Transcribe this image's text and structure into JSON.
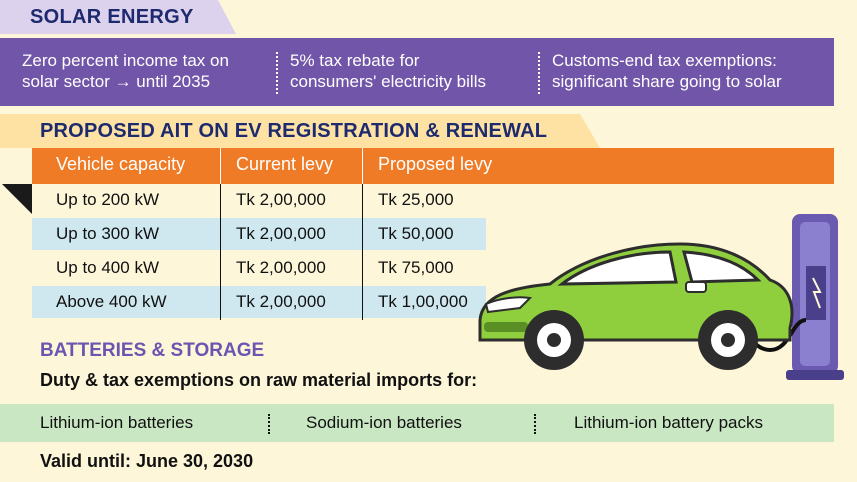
{
  "solar": {
    "title": "SOLAR ENERGY",
    "points": [
      {
        "line1": "Zero percent income tax on",
        "line2": "solar sector → until 2035"
      },
      {
        "line1": "5% tax rebate for",
        "line2": "consumers' electricity bills"
      },
      {
        "line1": "Customs-end tax exemptions:",
        "line2": "significant share going to solar"
      }
    ]
  },
  "ait": {
    "title": "PROPOSED AIT ON EV REGISTRATION & RENEWAL",
    "headers": [
      "Vehicle capacity",
      "Current levy",
      "Proposed levy"
    ],
    "rows": [
      [
        "Up to 200 kW",
        "Tk 2,00,000",
        "Tk 25,000"
      ],
      [
        "Up to 300 kW",
        "Tk 2,00,000",
        "Tk 50,000"
      ],
      [
        "Up to 400 kW",
        "Tk 2,00,000",
        "Tk 75,000"
      ],
      [
        "Above 400 kW",
        "Tk 2,00,000",
        "Tk 1,00,000"
      ]
    ]
  },
  "batteries": {
    "title": "BATTERIES & STORAGE",
    "subtitle": "Duty & tax exemptions on raw material imports for:",
    "items": [
      "Lithium-ion batteries",
      "Sodium-ion batteries",
      "Lithium-ion battery packs"
    ],
    "valid": "Valid until: June 30, 2030"
  },
  "colors": {
    "purple": "#7155a8",
    "orange": "#f07b26",
    "green_band": "#c9e7c2",
    "cream": "#fdf6d9",
    "car_green": "#8fcf3e"
  },
  "icons": [
    "ev-car-illustration",
    "charging-station-icon"
  ]
}
